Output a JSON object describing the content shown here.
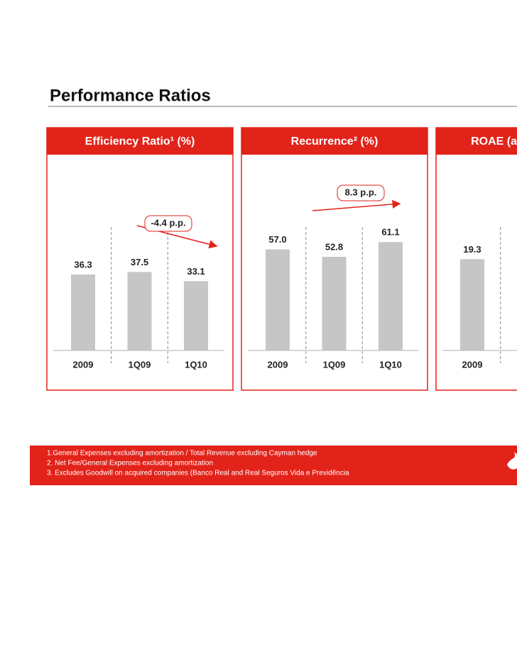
{
  "header": {
    "title": "Performance Ratios"
  },
  "chart_data": [
    {
      "type": "bar",
      "title": "Efficiency Ratio¹ (%)",
      "categories": [
        "2009",
        "1Q09",
        "1Q10"
      ],
      "values": [
        36.3,
        37.5,
        33.1
      ],
      "color": "#c6c6c6",
      "ylim": [
        0,
        61
      ],
      "annotation": "-4.4 p.p."
    },
    {
      "type": "bar",
      "title": "Recurrence² (%)",
      "categories": [
        "2009",
        "1Q09",
        "1Q10"
      ],
      "values": [
        57.0,
        52.8,
        61.1
      ],
      "value_labels": [
        "57.0",
        "52.8",
        "61.1"
      ],
      "color": "#c6c6c6",
      "ylim": [
        0,
        72
      ],
      "annotation": "8.3 p.p."
    },
    {
      "type": "bar",
      "title": "ROAE (ac",
      "categories": [
        "2009"
      ],
      "values": [
        19.3
      ],
      "color": "#c6c6c6",
      "ylim": [
        0,
        27
      ]
    }
  ],
  "footnotes": [
    "1.General Expenses excluding amortization / Total Revenue excluding Cayman hedge",
    "2. Net Fee/General Expenses excluding amortization",
    "3. Excludes Goodwill on acquired companies (Banco Real and Real Seguros Vida e Previdência"
  ]
}
